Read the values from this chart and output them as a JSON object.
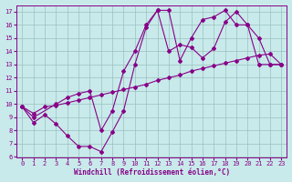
{
  "xlabel": "Windchill (Refroidissement éolien,°C)",
  "bg_color": "#c8eaea",
  "line_color": "#880088",
  "grid_color": "#9bbfbf",
  "xlim": [
    -0.5,
    23.5
  ],
  "ylim": [
    6,
    17.5
  ],
  "xticks": [
    0,
    1,
    2,
    3,
    4,
    5,
    6,
    7,
    8,
    9,
    10,
    11,
    12,
    13,
    14,
    15,
    16,
    17,
    18,
    19,
    20,
    21,
    22,
    23
  ],
  "yticks": [
    6,
    7,
    8,
    9,
    10,
    11,
    12,
    13,
    14,
    15,
    16,
    17
  ],
  "series1_x": [
    0,
    1,
    2,
    3,
    4,
    5,
    6,
    7,
    8,
    9,
    10,
    11,
    12,
    13,
    14,
    15,
    16,
    17,
    18,
    19,
    20,
    21,
    22,
    23
  ],
  "series1_y": [
    9.8,
    8.6,
    9.2,
    8.5,
    7.6,
    6.8,
    6.8,
    6.4,
    7.9,
    9.5,
    13.0,
    15.8,
    17.1,
    14.0,
    14.5,
    14.3,
    13.5,
    14.2,
    16.2,
    17.0,
    16.0,
    15.0,
    13.0,
    13.0
  ],
  "series2_x": [
    0,
    1,
    2,
    3,
    4,
    5,
    6,
    7,
    8,
    9,
    10,
    11,
    12,
    13,
    14,
    15,
    16,
    17,
    18,
    19,
    20,
    21,
    22,
    23
  ],
  "series2_y": [
    9.8,
    9.3,
    9.8,
    9.9,
    10.1,
    10.3,
    10.5,
    10.7,
    10.9,
    11.1,
    11.3,
    11.5,
    11.8,
    12.0,
    12.2,
    12.5,
    12.7,
    12.9,
    13.1,
    13.3,
    13.5,
    13.7,
    13.8,
    13.0
  ],
  "series3_x": [
    0,
    1,
    3,
    4,
    5,
    6,
    7,
    8,
    9,
    10,
    11,
    12,
    13,
    14,
    15,
    16,
    17,
    18,
    19,
    20,
    21,
    22,
    23
  ],
  "series3_y": [
    9.8,
    9.0,
    10.0,
    10.5,
    10.8,
    11.0,
    8.0,
    9.5,
    12.5,
    14.0,
    16.0,
    17.1,
    17.1,
    13.3,
    15.0,
    16.4,
    16.6,
    17.1,
    16.0,
    16.0,
    13.0,
    13.0,
    13.0
  ]
}
